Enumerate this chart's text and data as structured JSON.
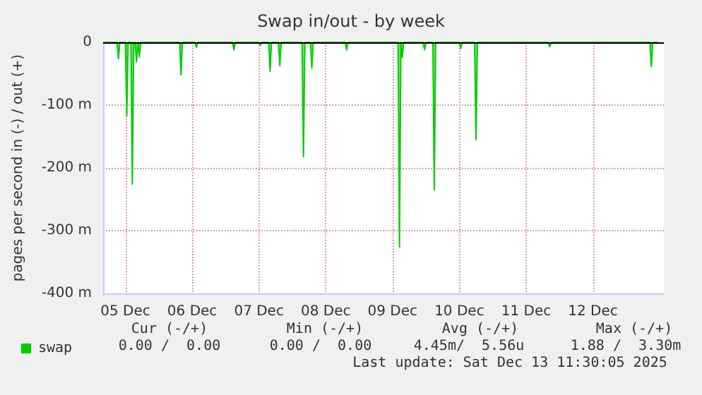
{
  "chart_data": {
    "type": "area",
    "title": "Swap in/out - by week",
    "ylabel": "pages per second in (-) / out (+)",
    "xlim": [
      "2025-12-05T04:00",
      "2025-12-13T13:30"
    ],
    "xticks": [
      {
        "value": "2025-12-05T12:00",
        "label": "05 Dec"
      },
      {
        "value": "2025-12-06T12:00",
        "label": "06 Dec"
      },
      {
        "value": "2025-12-07T12:00",
        "label": "07 Dec"
      },
      {
        "value": "2025-12-08T12:00",
        "label": "08 Dec"
      },
      {
        "value": "2025-12-09T12:00",
        "label": "09 Dec"
      },
      {
        "value": "2025-12-10T12:00",
        "label": "10 Dec"
      },
      {
        "value": "2025-12-11T12:00",
        "label": "11 Dec"
      },
      {
        "value": "2025-12-12T12:00",
        "label": "12 Dec"
      }
    ],
    "ylim": [
      -400,
      0
    ],
    "yticks": [
      {
        "value": -400,
        "label": "-400 m"
      },
      {
        "value": -300,
        "label": "-300 m"
      },
      {
        "value": -200,
        "label": "-200 m"
      },
      {
        "value": -100,
        "label": "-100 m"
      },
      0
    ],
    "grid": true,
    "legend": "bottom left",
    "line_style": "solid",
    "ref_lines": [
      {
        "axis": "y",
        "value": 0,
        "color": "#000000"
      }
    ],
    "series": [
      {
        "name": "swap",
        "color": "#00cc00",
        "x": [
          "2025-12-05T04:00",
          "2025-12-05T09:00",
          "2025-12-05T09:30",
          "2025-12-05T10:00",
          "2025-12-05T12:00",
          "2025-12-05T12:30",
          "2025-12-05T13:00",
          "2025-12-05T14:00",
          "2025-12-05T14:30",
          "2025-12-05T15:00",
          "2025-12-05T15:30",
          "2025-12-05T16:00",
          "2025-12-05T16:30",
          "2025-12-05T17:00",
          "2025-12-05T17:30",
          "2025-12-06T07:30",
          "2025-12-06T08:00",
          "2025-12-06T08:30",
          "2025-12-06T13:00",
          "2025-12-06T13:30",
          "2025-12-06T14:00",
          "2025-12-07T02:30",
          "2025-12-07T03:00",
          "2025-12-07T03:30",
          "2025-12-07T12:00",
          "2025-12-07T12:30",
          "2025-12-07T13:00",
          "2025-12-07T15:30",
          "2025-12-07T16:00",
          "2025-12-07T16:30",
          "2025-12-07T19:00",
          "2025-12-07T19:30",
          "2025-12-07T20:00",
          "2025-12-08T03:30",
          "2025-12-08T04:00",
          "2025-12-08T04:30",
          "2025-12-08T06:30",
          "2025-12-08T07:00",
          "2025-12-08T07:30",
          "2025-12-08T19:00",
          "2025-12-08T19:30",
          "2025-12-08T20:00",
          "2025-12-09T14:00",
          "2025-12-09T14:30",
          "2025-12-09T15:00",
          "2025-12-09T15:30",
          "2025-12-09T16:00",
          "2025-12-09T23:00",
          "2025-12-09T23:30",
          "2025-12-10T00:00",
          "2025-12-10T02:30",
          "2025-12-10T03:00",
          "2025-12-10T03:30",
          "2025-12-10T12:00",
          "2025-12-10T12:30",
          "2025-12-10T13:00",
          "2025-12-10T17:30",
          "2025-12-10T18:00",
          "2025-12-10T18:30",
          "2025-12-11T20:00",
          "2025-12-11T20:30",
          "2025-12-11T21:00",
          "2025-12-13T08:30",
          "2025-12-13T09:00",
          "2025-12-13T09:30",
          "2025-12-13T11:30"
        ],
        "values": [
          0,
          0,
          -26,
          0,
          0,
          -117,
          0,
          0,
          -226,
          0,
          0,
          -31,
          0,
          -23,
          0,
          0,
          -52,
          0,
          0,
          -8,
          0,
          0,
          -12,
          0,
          0,
          -5,
          0,
          0,
          -46,
          0,
          0,
          -37,
          0,
          0,
          -182,
          0,
          0,
          -41,
          0,
          0,
          -12,
          0,
          0,
          -326,
          0,
          -24,
          0,
          0,
          -12,
          0,
          0,
          -235,
          0,
          0,
          -10,
          0,
          0,
          -155,
          0,
          0,
          -7,
          0,
          0,
          -39,
          0,
          0
        ]
      }
    ],
    "annotations": [
      "Cur (-/+)",
      "Min (-/+)",
      "Avg (-/+)",
      "Max (-/+)",
      "0.00 /  0.00",
      "0.00 /  0.00",
      "4.45m/  5.56u",
      "1.88 /  3.30m",
      "Last update: Sat Dec 13 11:30:05 2025"
    ]
  }
}
